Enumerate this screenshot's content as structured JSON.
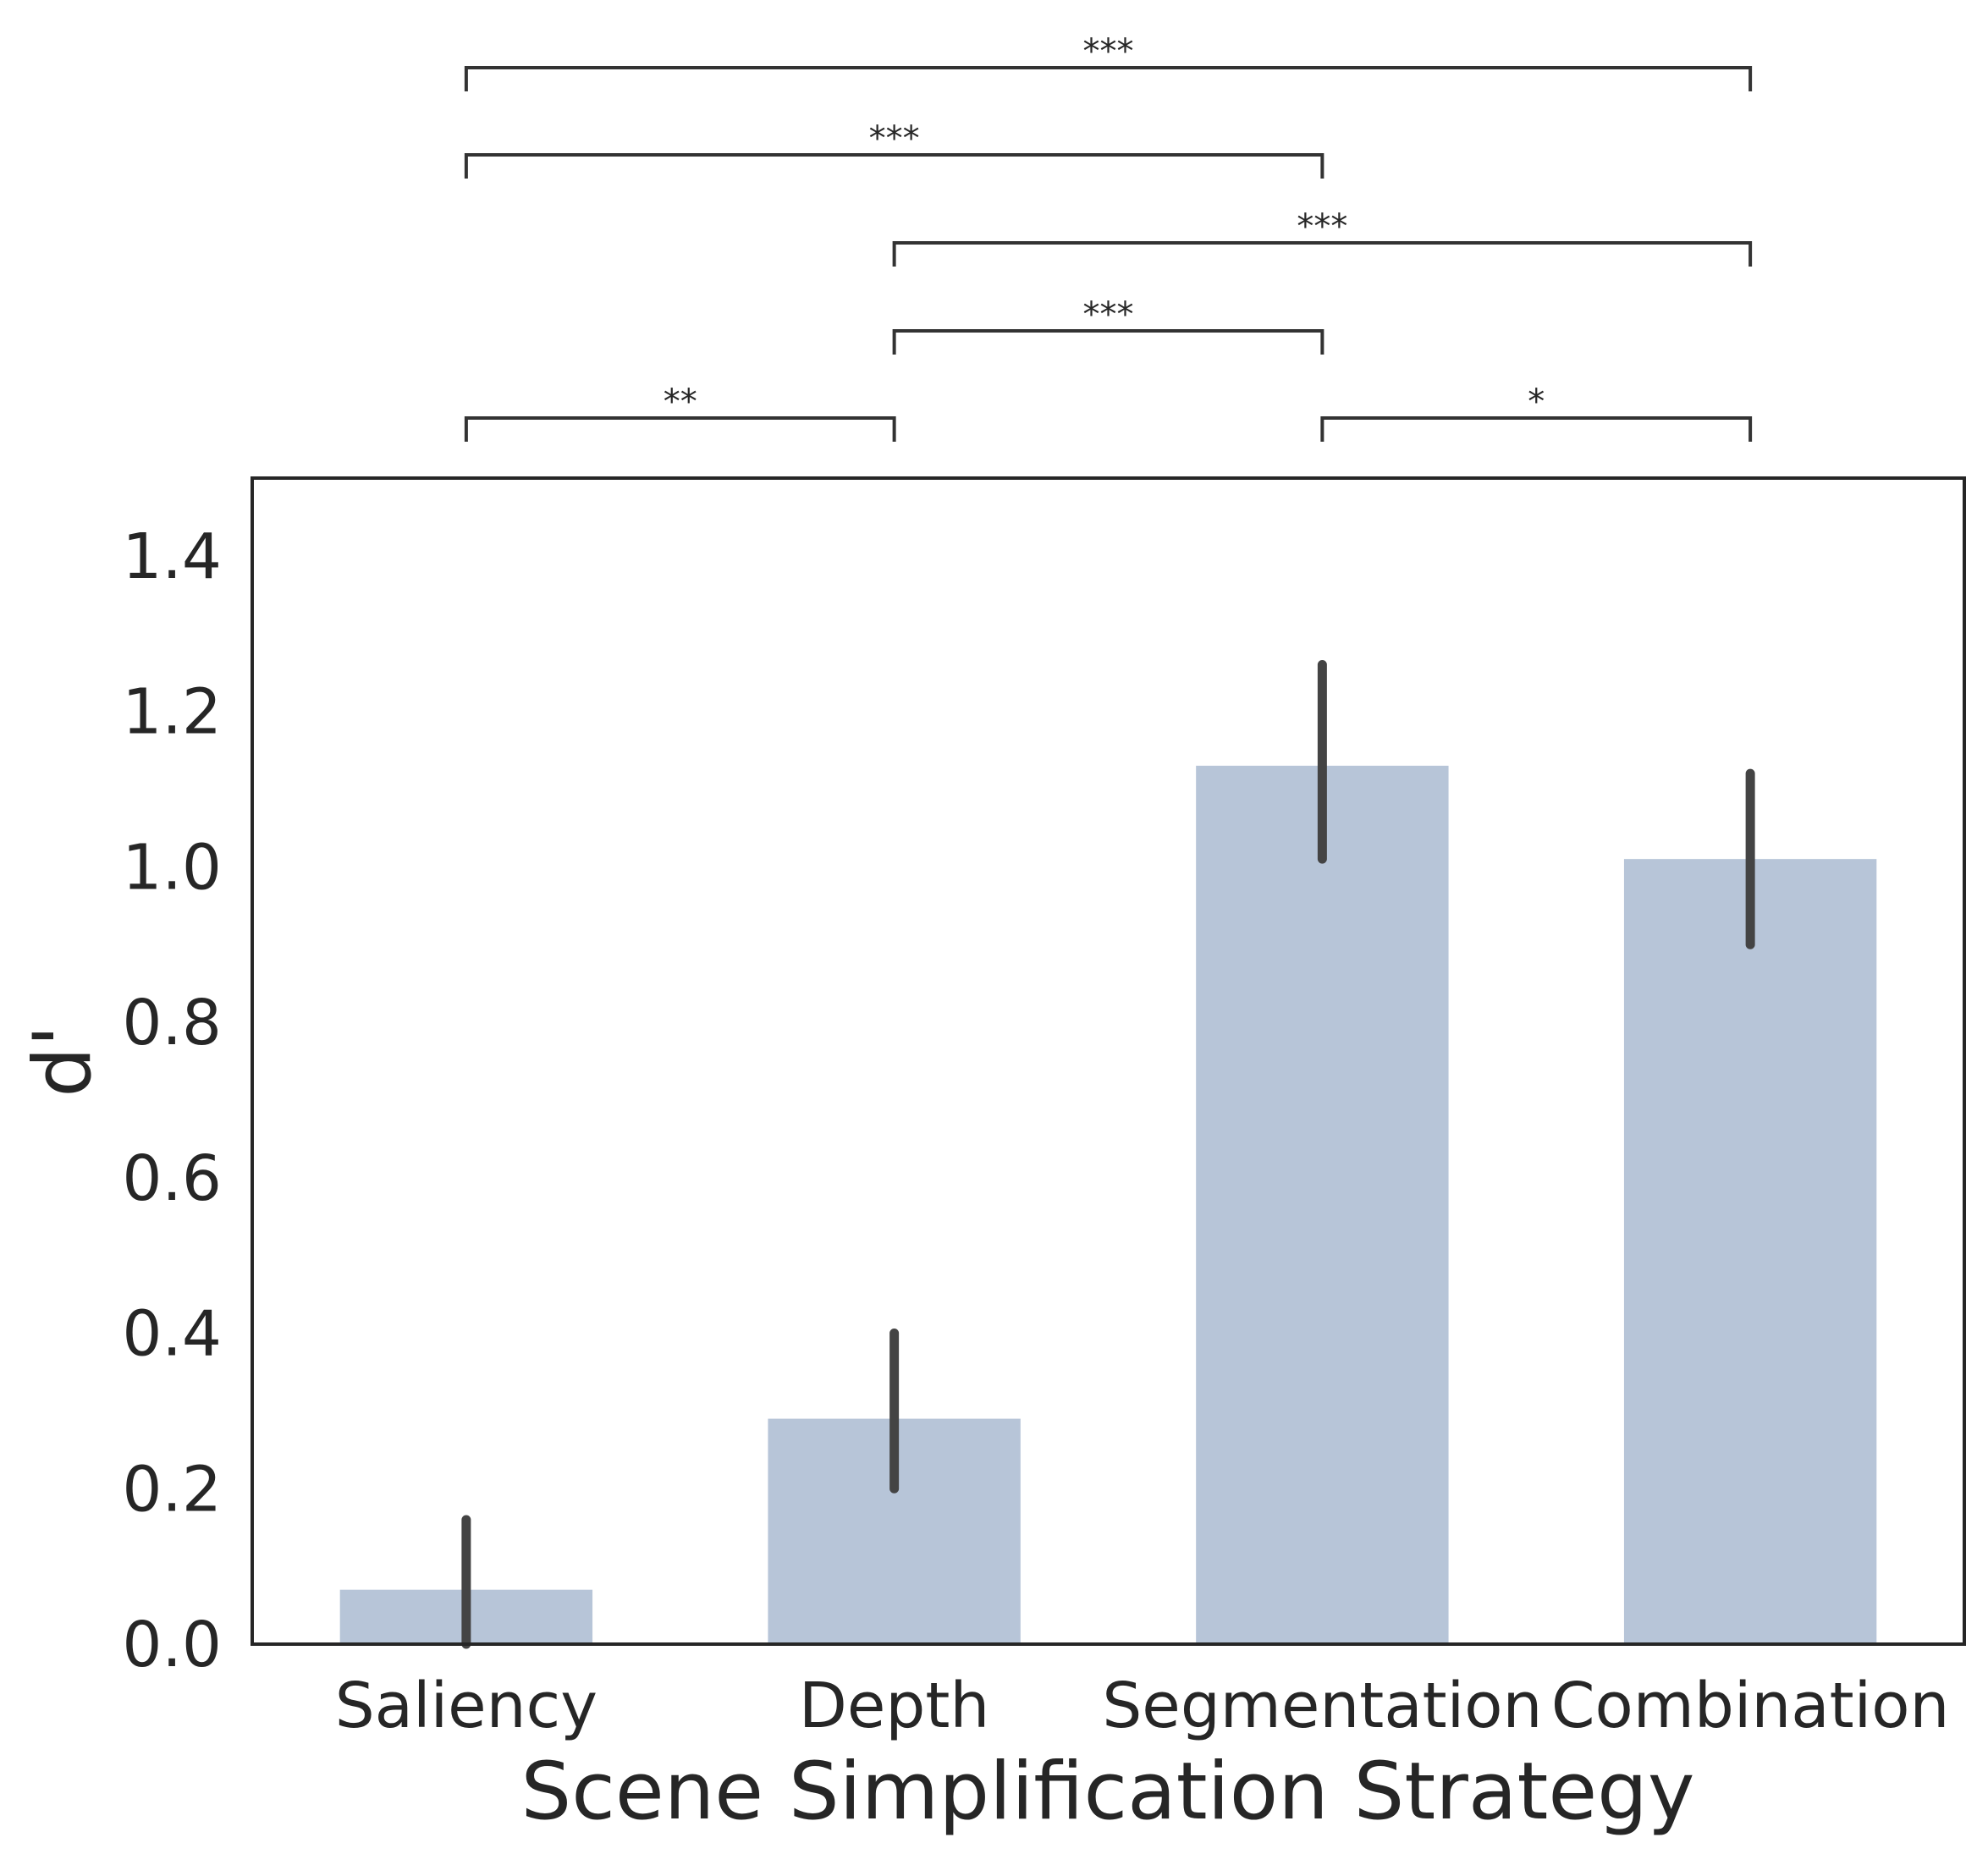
{
  "chart_data": {
    "type": "bar",
    "title": "",
    "xlabel": "Scene Simplification Strategy",
    "ylabel": "d'",
    "categories": [
      "Saliency",
      "Depth",
      "Segmentation",
      "Combination"
    ],
    "values": [
      0.07,
      0.29,
      1.13,
      1.01
    ],
    "error_bars": [
      {
        "low": 0.0,
        "high": 0.16
      },
      {
        "low": 0.2,
        "high": 0.4
      },
      {
        "low": 1.01,
        "high": 1.26
      },
      {
        "low": 0.9,
        "high": 1.12
      }
    ],
    "ylim": [
      0,
      1.5
    ],
    "yticks": [
      0.0,
      0.2,
      0.4,
      0.6,
      0.8,
      1.0,
      1.2,
      1.4
    ],
    "ytick_labels": [
      "0.0",
      "0.2",
      "0.4",
      "0.6",
      "0.8",
      "1.0",
      "1.2",
      "1.4"
    ],
    "grid": false,
    "bar_color": "#b7c5d8",
    "error_color": "#444444",
    "significance": [
      {
        "from": "Saliency",
        "to": "Combination",
        "label": "***"
      },
      {
        "from": "Saliency",
        "to": "Segmentation",
        "label": "***"
      },
      {
        "from": "Depth",
        "to": "Combination",
        "label": "***"
      },
      {
        "from": "Depth",
        "to": "Segmentation",
        "label": "***"
      },
      {
        "from": "Saliency",
        "to": "Depth",
        "label": "**"
      },
      {
        "from": "Segmentation",
        "to": "Combination",
        "label": "*"
      }
    ]
  }
}
